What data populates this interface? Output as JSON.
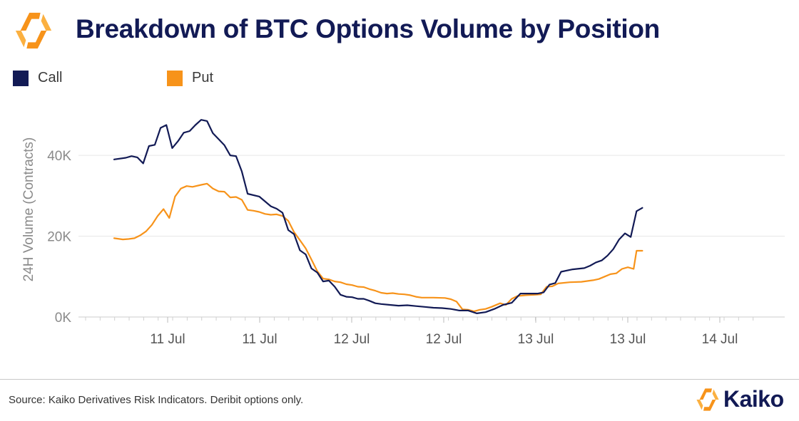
{
  "header": {
    "title": "Breakdown of BTC Options Volume by Position"
  },
  "legend": {
    "call_label": "Call",
    "put_label": "Put"
  },
  "colors": {
    "call": "#121a55",
    "put": "#f7931a",
    "brand_navy": "#121a55",
    "brand_orange": "#f7931a"
  },
  "icons": {
    "header_logo": "kaiko-hexagon-logo-icon",
    "footer_logo": "kaiko-hexagon-logo-icon"
  },
  "footer": {
    "source": "Source: Kaiko Derivatives Risk Indicators. Deribit options only.",
    "brand": "Kaiko"
  },
  "chart_data": {
    "type": "line",
    "title": "Breakdown of BTC Options Volume by Position",
    "xlabel": "",
    "ylabel": "24H Volume (Contracts)",
    "ylim": [
      0,
      52000
    ],
    "yticks": [
      0,
      20000,
      40000
    ],
    "ytick_labels": [
      "0K",
      "20K",
      "40K"
    ],
    "grid": "horizontal",
    "legend_position": "top-left",
    "x": [
      0,
      1,
      2,
      3,
      4,
      5,
      6,
      7,
      8,
      9,
      10,
      11,
      12,
      13,
      14,
      15,
      16,
      17,
      18,
      19,
      20,
      21,
      22,
      23,
      24,
      25,
      26,
      27,
      28,
      29,
      30,
      31,
      32,
      33,
      34,
      35,
      36,
      37,
      38,
      39,
      40,
      41,
      42,
      43,
      44,
      45,
      46,
      47,
      48,
      49,
      50,
      51,
      52,
      53,
      54,
      55,
      56,
      57,
      58,
      59,
      60,
      61,
      62,
      63,
      64,
      65,
      66,
      67,
      68,
      69,
      70,
      71,
      72,
      73,
      74,
      75,
      76,
      77,
      78,
      79,
      80,
      81,
      82,
      83,
      84,
      85,
      86,
      87,
      88,
      89,
      90,
      91,
      92,
      93,
      94,
      95,
      96,
      97,
      98,
      99,
      100,
      101,
      102,
      103,
      104,
      105,
      106,
      107,
      108,
      109,
      110,
      111,
      112,
      113,
      114,
      115,
      116,
      117,
      118,
      119,
      120,
      121,
      122,
      123,
      124,
      125,
      126,
      127,
      128,
      129,
      130,
      131,
      132,
      133,
      134,
      135,
      136,
      137,
      138,
      139,
      140,
      141,
      142,
      143,
      144,
      145,
      146,
      147,
      148,
      149,
      150,
      151,
      152,
      153,
      154,
      155,
      156,
      157,
      158,
      159,
      160,
      161,
      162,
      163,
      164,
      165,
      166,
      167,
      168,
      169,
      170,
      171,
      172,
      173,
      174,
      175,
      176,
      177,
      178,
      179,
      180,
      181,
      182,
      183,
      184,
      185,
      186,
      187,
      188,
      189,
      190,
      191,
      192,
      193,
      194,
      195,
      196,
      197,
      198,
      199,
      200,
      201,
      202,
      203,
      204,
      205,
      206,
      207,
      208,
      209,
      210,
      211,
      212,
      213,
      214,
      215,
      216,
      217,
      218,
      219,
      220
    ],
    "xticks": [
      18,
      48,
      78,
      108,
      138,
      168,
      198
    ],
    "xtick_labels": [
      "11 Jul",
      "11 Jul",
      "12 Jul",
      "12 Jul",
      "13 Jul",
      "13 Jul",
      "14 Jul"
    ],
    "series": [
      {
        "name": "Call",
        "points": [
          [
            0,
            39000
          ],
          [
            4,
            39400
          ],
          [
            6,
            39800
          ],
          [
            8,
            39500
          ],
          [
            10,
            38000
          ],
          [
            12,
            42300
          ],
          [
            14,
            42600
          ],
          [
            16,
            46800
          ],
          [
            18,
            47500
          ],
          [
            20,
            41800
          ],
          [
            22,
            43500
          ],
          [
            24,
            45600
          ],
          [
            26,
            46000
          ],
          [
            28,
            47500
          ],
          [
            30,
            48800
          ],
          [
            32,
            48500
          ],
          [
            34,
            45500
          ],
          [
            36,
            44000
          ],
          [
            38,
            42500
          ],
          [
            40,
            40000
          ],
          [
            42,
            39800
          ],
          [
            44,
            36000
          ],
          [
            46,
            30500
          ],
          [
            50,
            29800
          ],
          [
            54,
            27400
          ],
          [
            56,
            26800
          ],
          [
            58,
            25800
          ],
          [
            60,
            21500
          ],
          [
            62,
            20500
          ],
          [
            64,
            16500
          ],
          [
            66,
            15500
          ],
          [
            68,
            12000
          ],
          [
            70,
            11000
          ],
          [
            72,
            8800
          ],
          [
            74,
            9000
          ],
          [
            76,
            7500
          ],
          [
            78,
            5500
          ],
          [
            80,
            5000
          ],
          [
            82,
            4900
          ],
          [
            84,
            4500
          ],
          [
            86,
            4500
          ],
          [
            88,
            4000
          ],
          [
            90,
            3400
          ],
          [
            92,
            3200
          ],
          [
            95,
            3000
          ],
          [
            98,
            2800
          ],
          [
            101,
            2900
          ],
          [
            104,
            2700
          ],
          [
            107,
            2500
          ],
          [
            110,
            2300
          ],
          [
            113,
            2200
          ],
          [
            116,
            2000
          ],
          [
            119,
            1600
          ],
          [
            122,
            1600
          ],
          [
            125,
            900
          ],
          [
            128,
            1200
          ],
          [
            131,
            2000
          ],
          [
            134,
            3000
          ],
          [
            137,
            3500
          ],
          [
            140,
            5800
          ],
          [
            143,
            5800
          ],
          [
            146,
            5800
          ],
          [
            148,
            6100
          ],
          [
            150,
            8000
          ],
          [
            152,
            8400
          ],
          [
            154,
            11200
          ],
          [
            158,
            11800
          ],
          [
            162,
            12100
          ],
          [
            164,
            12700
          ],
          [
            166,
            13500
          ],
          [
            168,
            14000
          ],
          [
            170,
            15200
          ],
          [
            172,
            16800
          ],
          [
            174,
            19200
          ],
          [
            176,
            20700
          ],
          [
            178,
            19800
          ],
          [
            180,
            26200
          ],
          [
            182,
            27000
          ]
        ]
      },
      {
        "name": "Put",
        "points": [
          [
            0,
            19500
          ],
          [
            3,
            19200
          ],
          [
            5,
            19300
          ],
          [
            7,
            19500
          ],
          [
            9,
            20200
          ],
          [
            11,
            21200
          ],
          [
            13,
            22800
          ],
          [
            15,
            25000
          ],
          [
            17,
            26700
          ],
          [
            19,
            24500
          ],
          [
            21,
            29800
          ],
          [
            23,
            31800
          ],
          [
            25,
            32400
          ],
          [
            27,
            32200
          ],
          [
            30,
            32700
          ],
          [
            32,
            33000
          ],
          [
            34,
            31800
          ],
          [
            36,
            31100
          ],
          [
            38,
            31000
          ],
          [
            40,
            29600
          ],
          [
            42,
            29700
          ],
          [
            44,
            29000
          ],
          [
            46,
            26500
          ],
          [
            48,
            26300
          ],
          [
            50,
            26000
          ],
          [
            52,
            25500
          ],
          [
            54,
            25300
          ],
          [
            56,
            25400
          ],
          [
            58,
            25000
          ],
          [
            60,
            23800
          ],
          [
            62,
            21000
          ],
          [
            64,
            19000
          ],
          [
            66,
            17000
          ],
          [
            68,
            14200
          ],
          [
            70,
            11300
          ],
          [
            72,
            9500
          ],
          [
            74,
            9300
          ],
          [
            76,
            8800
          ],
          [
            78,
            8600
          ],
          [
            80,
            8100
          ],
          [
            82,
            7900
          ],
          [
            84,
            7500
          ],
          [
            86,
            7400
          ],
          [
            88,
            6900
          ],
          [
            90,
            6500
          ],
          [
            92,
            6000
          ],
          [
            94,
            5800
          ],
          [
            96,
            5900
          ],
          [
            98,
            5700
          ],
          [
            100,
            5600
          ],
          [
            102,
            5400
          ],
          [
            104,
            5000
          ],
          [
            106,
            4800
          ],
          [
            110,
            4800
          ],
          [
            114,
            4700
          ],
          [
            116,
            4400
          ],
          [
            118,
            3800
          ],
          [
            120,
            1900
          ],
          [
            122,
            1800
          ],
          [
            124,
            1400
          ],
          [
            126,
            1800
          ],
          [
            128,
            2000
          ],
          [
            130,
            2500
          ],
          [
            133,
            3400
          ],
          [
            135,
            3000
          ],
          [
            137,
            4500
          ],
          [
            139,
            5200
          ],
          [
            142,
            5400
          ],
          [
            145,
            5500
          ],
          [
            147,
            5600
          ],
          [
            149,
            7500
          ],
          [
            151,
            7600
          ],
          [
            153,
            8300
          ],
          [
            157,
            8600
          ],
          [
            161,
            8700
          ],
          [
            165,
            9100
          ],
          [
            167,
            9400
          ],
          [
            169,
            10000
          ],
          [
            171,
            10600
          ],
          [
            173,
            10800
          ],
          [
            175,
            11900
          ],
          [
            177,
            12300
          ],
          [
            179,
            11900
          ],
          [
            180,
            16400
          ],
          [
            182,
            16400
          ]
        ]
      }
    ]
  }
}
